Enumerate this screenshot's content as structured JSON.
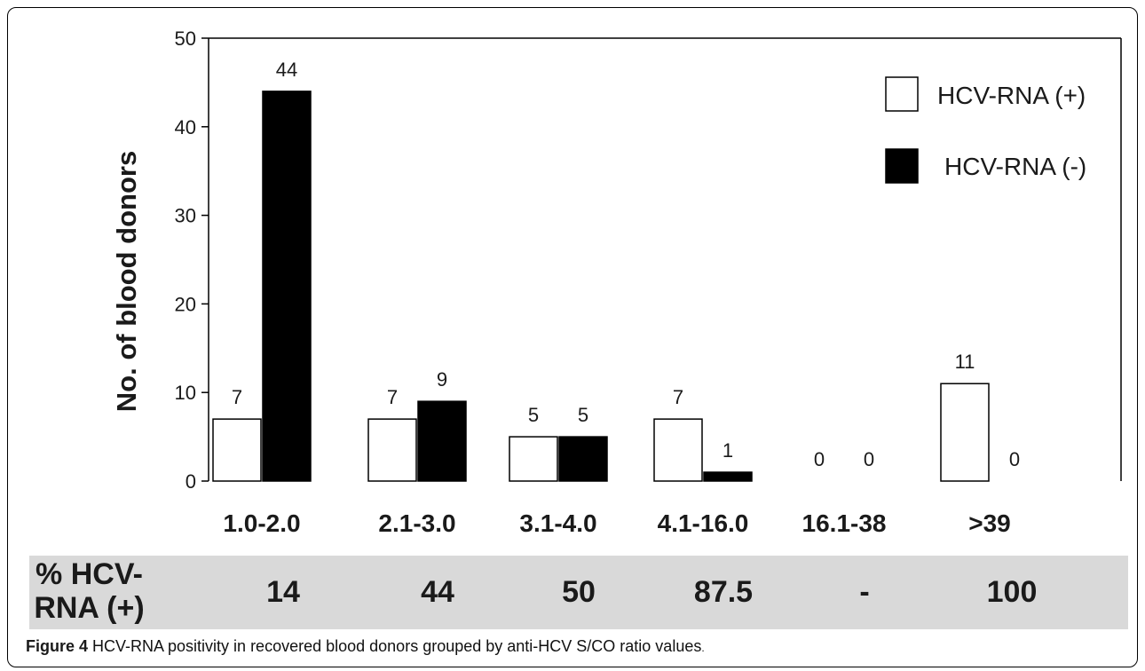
{
  "chart_data": {
    "type": "bar",
    "ylabel": "No. of blood donors",
    "xlabel": "",
    "ylim": [
      0,
      50
    ],
    "yticks": [
      0,
      10,
      20,
      30,
      40,
      50
    ],
    "categories": [
      "1.0-2.0",
      "2.1-3.0",
      "3.1-4.0",
      "4.1-16.0",
      "16.1-38",
      ">39"
    ],
    "series": [
      {
        "name": "HCV-RNA (+)",
        "values": [
          7,
          7,
          5,
          7,
          0,
          11
        ],
        "color": "#ffffff"
      },
      {
        "name": "HCV-RNA (-)",
        "values": [
          44,
          9,
          5,
          1,
          0,
          0
        ],
        "color": "#000000"
      }
    ],
    "legend_position": "top-right",
    "grid": false
  },
  "pct_row": {
    "label_line1": "% HCV-",
    "label_line2": "RNA (+)",
    "values": [
      "14",
      "44",
      "50",
      "87.5",
      "-",
      "100"
    ]
  },
  "caption": {
    "figure_number": "Figure 4",
    "text": " HCV-RNA positivity in recovered blood donors grouped by anti-HCV S/CO ratio values",
    "end": "."
  }
}
